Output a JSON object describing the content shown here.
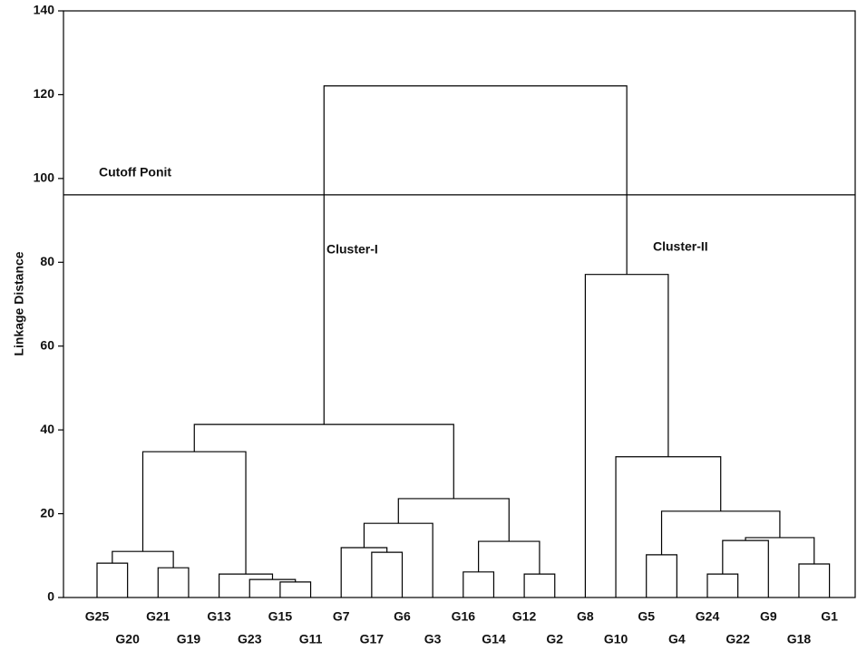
{
  "chart_data": {
    "type": "dendrogram",
    "y_label": "Linkage Distance",
    "ylim": [
      0,
      140
    ],
    "yticks": [
      0,
      20,
      40,
      60,
      80,
      100,
      120,
      140
    ],
    "leaves": [
      "G25",
      "G20",
      "G21",
      "G19",
      "G13",
      "G23",
      "G15",
      "G11",
      "G7",
      "G17",
      "G6",
      "G3",
      "G16",
      "G14",
      "G12",
      "G2",
      "G8",
      "G10",
      "G5",
      "G4",
      "G24",
      "G22",
      "G9",
      "G18",
      "G1"
    ],
    "merges": [
      {
        "children": [
          "G25",
          "G20"
        ],
        "height": 8.2
      },
      {
        "children": [
          "G21",
          "G19"
        ],
        "height": 7.1
      },
      {
        "children": [
          0,
          1
        ],
        "height": 11.0
      },
      {
        "children": [
          "G15",
          "G11"
        ],
        "height": 3.7
      },
      {
        "children": [
          "G23",
          3
        ],
        "height": 4.3
      },
      {
        "children": [
          "G13",
          4
        ],
        "height": 5.6
      },
      {
        "children": [
          2,
          5
        ],
        "height": 34.8
      },
      {
        "children": [
          "G17",
          "G6"
        ],
        "height": 10.8
      },
      {
        "children": [
          "G7",
          7
        ],
        "height": 11.9
      },
      {
        "children": [
          8,
          "G3"
        ],
        "height": 17.7
      },
      {
        "children": [
          "G16",
          "G14"
        ],
        "height": 6.1
      },
      {
        "children": [
          "G12",
          "G2"
        ],
        "height": 5.6
      },
      {
        "children": [
          10,
          11
        ],
        "height": 13.4
      },
      {
        "children": [
          9,
          12
        ],
        "height": 23.6
      },
      {
        "children": [
          6,
          13
        ],
        "height": 41.3
      },
      {
        "children": [
          "G5",
          "G4"
        ],
        "height": 10.2
      },
      {
        "children": [
          "G24",
          "G22"
        ],
        "height": 5.6
      },
      {
        "children": [
          16,
          "G9"
        ],
        "height": 13.6
      },
      {
        "children": [
          "G18",
          "G1"
        ],
        "height": 8.0
      },
      {
        "children": [
          17,
          18
        ],
        "height": 14.3
      },
      {
        "children": [
          15,
          19
        ],
        "height": 20.6
      },
      {
        "children": [
          "G10",
          20
        ],
        "height": 33.6
      },
      {
        "children": [
          "G8",
          21
        ],
        "height": 77.1
      },
      {
        "children": [
          14,
          22
        ],
        "height": 122.1
      }
    ],
    "cutoff": 96.1,
    "cutoff_label": "Cutoff Ponit",
    "cluster_labels": [
      "Cluster-I",
      "Cluster-II"
    ]
  }
}
